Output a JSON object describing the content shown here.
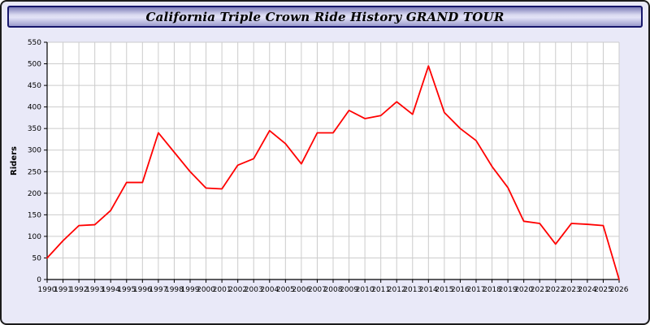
{
  "window": {
    "title": "California Triple Crown Ride History GRAND TOUR"
  },
  "colors": {
    "page_background": "#e9e9f8",
    "plot_background": "#ffffff",
    "grid": "#cccccc",
    "axis": "#000000",
    "line": "#ff0000",
    "title_bar_border": "#16166b"
  },
  "chart_data": {
    "type": "line",
    "title": "California Triple Crown Ride History GRAND TOUR",
    "xlabel": "",
    "ylabel": "Riders",
    "ylim": [
      0,
      550
    ],
    "y_tick_step": 50,
    "grid": true,
    "legend": "none",
    "line_color": "#ff0000",
    "x": [
      1990,
      1991,
      1992,
      1993,
      1994,
      1995,
      1996,
      1997,
      1998,
      1999,
      2000,
      2001,
      2002,
      2003,
      2004,
      2005,
      2006,
      2007,
      2008,
      2009,
      2010,
      2011,
      2012,
      2013,
      2014,
      2015,
      2016,
      2017,
      2018,
      2019,
      2020,
      2021,
      2022,
      2023,
      2024,
      2025,
      2026
    ],
    "values": [
      50,
      90,
      125,
      127,
      160,
      225,
      225,
      340,
      295,
      250,
      212,
      210,
      265,
      280,
      345,
      315,
      268,
      340,
      340,
      392,
      373,
      380,
      412,
      383,
      495,
      387,
      350,
      322,
      262,
      213,
      135,
      130,
      82,
      130,
      128,
      125,
      0
    ]
  }
}
